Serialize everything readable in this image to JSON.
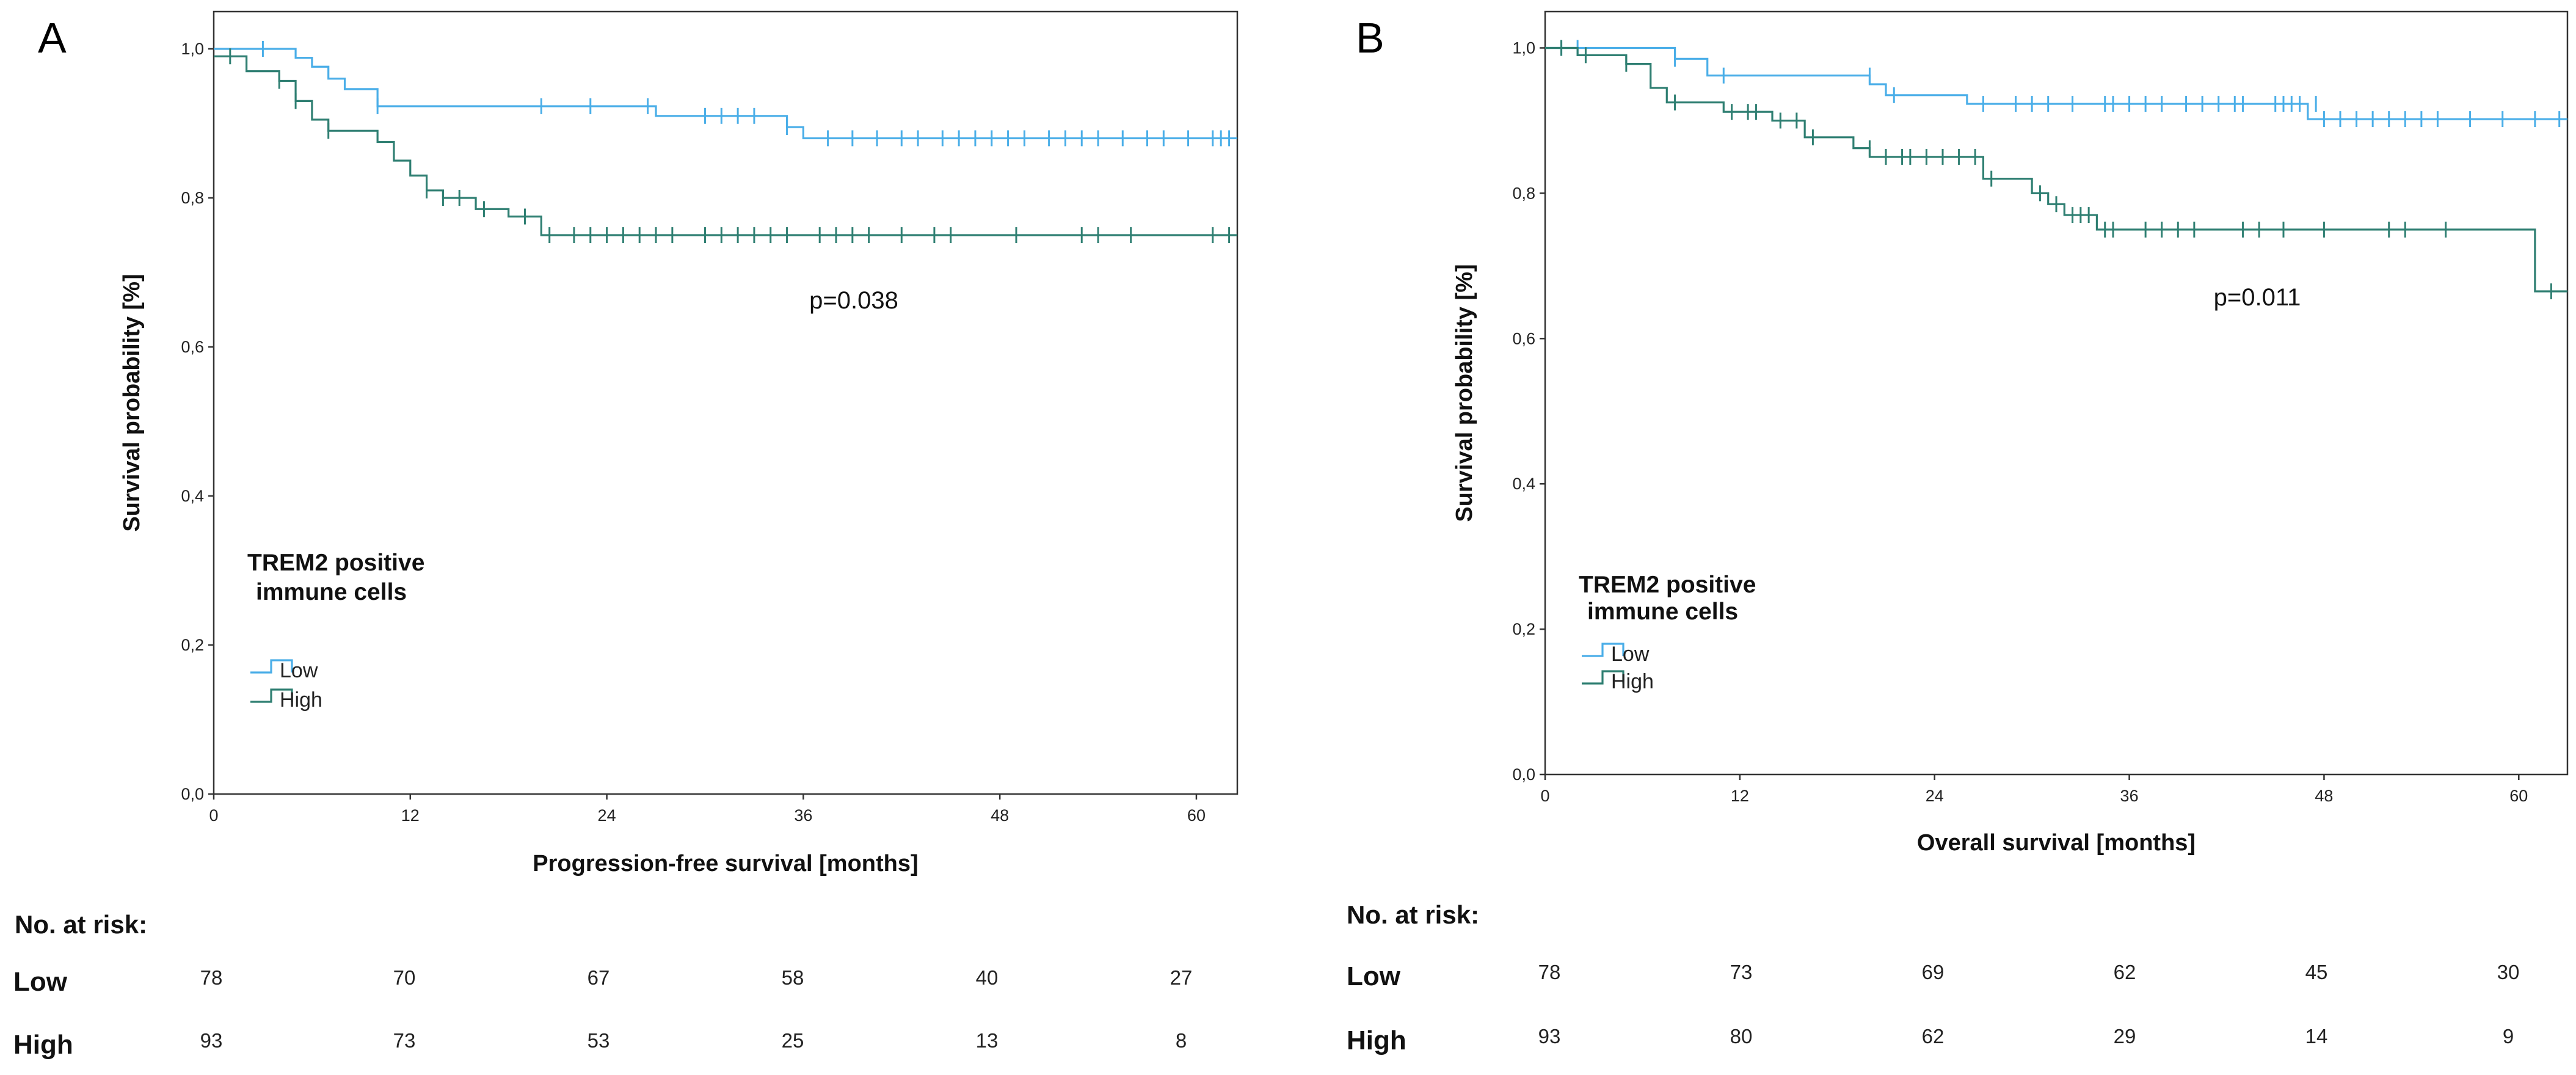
{
  "chart_data": [
    {
      "type": "line",
      "panel": "A",
      "xlabel": "Progression-free survival [months]",
      "ylabel": "Survival probability [%]",
      "xlim": [
        0,
        62.5
      ],
      "ylim": [
        0,
        1.05
      ],
      "xticks": [
        0,
        12,
        24,
        36,
        48,
        60
      ],
      "xtick_labels": [
        "0",
        "12",
        "24",
        "36",
        "48",
        "60"
      ],
      "yticks": [
        0,
        0.2,
        0.4,
        0.6,
        0.8,
        1.0
      ],
      "ytick_labels": [
        "0,0",
        "0,2",
        "0,4",
        "0,6",
        "0,8",
        "1,0"
      ],
      "grid": false,
      "legend": {
        "title_lines": [
          "TREM2 positive",
          "immune cells"
        ],
        "entries": [
          "Low",
          "High"
        ],
        "placement": "lower-left"
      },
      "annotation": "p=0.038",
      "series": [
        {
          "name": "Low",
          "color": "#4aaee8",
          "steps": [
            [
              0,
              1.0
            ],
            [
              5,
              0.988
            ],
            [
              6,
              0.976
            ],
            [
              7,
              0.96
            ],
            [
              8,
              0.946
            ],
            [
              10,
              0.923
            ],
            [
              27,
              0.91
            ],
            [
              35,
              0.895
            ],
            [
              36,
              0.88
            ]
          ],
          "censored": [
            [
              3,
              1.0
            ],
            [
              10,
              0.923
            ],
            [
              20,
              0.923
            ],
            [
              23,
              0.923
            ],
            [
              26.5,
              0.923
            ],
            [
              30,
              0.91
            ],
            [
              31,
              0.91
            ],
            [
              32,
              0.91
            ],
            [
              33,
              0.91
            ],
            [
              35,
              0.895
            ],
            [
              37.5,
              0.88
            ],
            [
              39,
              0.88
            ],
            [
              40.5,
              0.88
            ],
            [
              42,
              0.88
            ],
            [
              43,
              0.88
            ],
            [
              44.5,
              0.88
            ],
            [
              45.5,
              0.88
            ],
            [
              46.5,
              0.88
            ],
            [
              47.5,
              0.88
            ],
            [
              48.5,
              0.88
            ],
            [
              49.5,
              0.88
            ],
            [
              51,
              0.88
            ],
            [
              52,
              0.88
            ],
            [
              53,
              0.88
            ],
            [
              54,
              0.88
            ],
            [
              55.5,
              0.88
            ],
            [
              57,
              0.88
            ],
            [
              58,
              0.88
            ],
            [
              59.5,
              0.88
            ],
            [
              61,
              0.88
            ],
            [
              61.5,
              0.88
            ],
            [
              62,
              0.88
            ]
          ]
        },
        {
          "name": "High",
          "color": "#2f7f72",
          "steps": [
            [
              0,
              0.99
            ],
            [
              2,
              0.97
            ],
            [
              4,
              0.957
            ],
            [
              5,
              0.93
            ],
            [
              6,
              0.905
            ],
            [
              7,
              0.89
            ],
            [
              10,
              0.875
            ],
            [
              11,
              0.85
            ],
            [
              12,
              0.83
            ],
            [
              13,
              0.81
            ],
            [
              14,
              0.8
            ],
            [
              16,
              0.785
            ],
            [
              18,
              0.775
            ],
            [
              20,
              0.75
            ]
          ],
          "censored": [
            [
              1,
              0.99
            ],
            [
              4,
              0.957
            ],
            [
              5,
              0.93
            ],
            [
              7,
              0.89
            ],
            [
              13,
              0.81
            ],
            [
              14,
              0.8
            ],
            [
              15,
              0.8
            ],
            [
              16.5,
              0.785
            ],
            [
              19,
              0.775
            ],
            [
              20.5,
              0.75
            ],
            [
              22,
              0.75
            ],
            [
              23,
              0.75
            ],
            [
              24,
              0.75
            ],
            [
              25,
              0.75
            ],
            [
              26,
              0.75
            ],
            [
              27,
              0.75
            ],
            [
              28,
              0.75
            ],
            [
              30,
              0.75
            ],
            [
              31,
              0.75
            ],
            [
              32,
              0.75
            ],
            [
              33,
              0.75
            ],
            [
              34,
              0.75
            ],
            [
              35,
              0.75
            ],
            [
              37,
              0.75
            ],
            [
              38,
              0.75
            ],
            [
              39,
              0.75
            ],
            [
              40,
              0.75
            ],
            [
              42,
              0.75
            ],
            [
              44,
              0.75
            ],
            [
              45,
              0.75
            ],
            [
              49,
              0.75
            ],
            [
              53,
              0.75
            ],
            [
              54,
              0.75
            ],
            [
              56,
              0.75
            ],
            [
              61,
              0.75
            ],
            [
              62,
              0.75
            ]
          ]
        }
      ],
      "risk_table": {
        "heading": "No. at risk:",
        "groups": [
          {
            "name": "Low",
            "values": [
              "78",
              "70",
              "67",
              "58",
              "40",
              "27"
            ]
          },
          {
            "name": "High",
            "values": [
              "93",
              "73",
              "53",
              "25",
              "13",
              "8"
            ]
          }
        ]
      }
    },
    {
      "type": "line",
      "panel": "B",
      "xlabel": "Overall survival [months]",
      "ylabel": "Survival probability [%]",
      "xlim": [
        0,
        63
      ],
      "ylim": [
        0,
        1.05
      ],
      "xticks": [
        0,
        12,
        24,
        36,
        48,
        60
      ],
      "xtick_labels": [
        "0",
        "12",
        "24",
        "36",
        "48",
        "60"
      ],
      "yticks": [
        0,
        0.2,
        0.4,
        0.6,
        0.8,
        1.0
      ],
      "ytick_labels": [
        "0,0",
        "0,2",
        "0,4",
        "0,6",
        "0,8",
        "1,0"
      ],
      "grid": false,
      "legend": {
        "title_lines": [
          "TREM2 positive",
          "immune cells"
        ],
        "entries": [
          "Low",
          "High"
        ],
        "placement": "lower-left"
      },
      "annotation": "p=0.011",
      "series": [
        {
          "name": "Low",
          "color": "#4aaee8",
          "steps": [
            [
              0,
              1.0
            ],
            [
              8,
              0.985
            ],
            [
              10,
              0.962
            ],
            [
              20,
              0.95
            ],
            [
              21,
              0.935
            ],
            [
              26,
              0.923
            ],
            [
              47,
              0.902
            ]
          ],
          "censored": [
            [
              1,
              1.0
            ],
            [
              2,
              1.0
            ],
            [
              8,
              0.985
            ],
            [
              11,
              0.962
            ],
            [
              20,
              0.962
            ],
            [
              21.5,
              0.935
            ],
            [
              27,
              0.923
            ],
            [
              29,
              0.923
            ],
            [
              30,
              0.923
            ],
            [
              31,
              0.923
            ],
            [
              32.5,
              0.923
            ],
            [
              34.5,
              0.923
            ],
            [
              35,
              0.923
            ],
            [
              36,
              0.923
            ],
            [
              37,
              0.923
            ],
            [
              38,
              0.923
            ],
            [
              39.5,
              0.923
            ],
            [
              40.5,
              0.923
            ],
            [
              41.5,
              0.923
            ],
            [
              42.5,
              0.923
            ],
            [
              43,
              0.923
            ],
            [
              45,
              0.923
            ],
            [
              45.5,
              0.923
            ],
            [
              46,
              0.923
            ],
            [
              46.5,
              0.923
            ],
            [
              47.5,
              0.923
            ],
            [
              48,
              0.902
            ],
            [
              49,
              0.902
            ],
            [
              50,
              0.902
            ],
            [
              51,
              0.902
            ],
            [
              52,
              0.902
            ],
            [
              53,
              0.902
            ],
            [
              54,
              0.902
            ],
            [
              55,
              0.902
            ],
            [
              57,
              0.902
            ],
            [
              59,
              0.902
            ],
            [
              61,
              0.902
            ],
            [
              62.5,
              0.902
            ]
          ]
        },
        {
          "name": "High",
          "color": "#2f7f72",
          "steps": [
            [
              0,
              1.0
            ],
            [
              2,
              0.99
            ],
            [
              5,
              0.978
            ],
            [
              6.5,
              0.945
            ],
            [
              7.5,
              0.925
            ],
            [
              11,
              0.912
            ],
            [
              14,
              0.9
            ],
            [
              16,
              0.877
            ],
            [
              19,
              0.862
            ],
            [
              20,
              0.85
            ],
            [
              27,
              0.82
            ],
            [
              30,
              0.8
            ],
            [
              31,
              0.785
            ],
            [
              32,
              0.77
            ],
            [
              34,
              0.75
            ],
            [
              61,
              0.665
            ]
          ],
          "censored": [
            [
              1,
              1.0
            ],
            [
              2.5,
              0.99
            ],
            [
              5,
              0.978
            ],
            [
              8,
              0.925
            ],
            [
              11.5,
              0.912
            ],
            [
              12.5,
              0.912
            ],
            [
              13,
              0.912
            ],
            [
              14.5,
              0.9
            ],
            [
              15.5,
              0.9
            ],
            [
              16.5,
              0.877
            ],
            [
              20,
              0.862
            ],
            [
              21,
              0.85
            ],
            [
              22,
              0.85
            ],
            [
              22.5,
              0.85
            ],
            [
              23.5,
              0.85
            ],
            [
              24.5,
              0.85
            ],
            [
              25.5,
              0.85
            ],
            [
              26.5,
              0.85
            ],
            [
              27.5,
              0.82
            ],
            [
              30.5,
              0.8
            ],
            [
              31.5,
              0.785
            ],
            [
              32.5,
              0.77
            ],
            [
              33,
              0.77
            ],
            [
              33.5,
              0.77
            ],
            [
              34.5,
              0.75
            ],
            [
              35,
              0.75
            ],
            [
              37,
              0.75
            ],
            [
              38,
              0.75
            ],
            [
              39,
              0.75
            ],
            [
              40,
              0.75
            ],
            [
              43,
              0.75
            ],
            [
              44,
              0.75
            ],
            [
              45.5,
              0.75
            ],
            [
              48,
              0.75
            ],
            [
              52,
              0.75
            ],
            [
              53,
              0.75
            ],
            [
              55.5,
              0.75
            ],
            [
              62,
              0.665
            ]
          ]
        }
      ],
      "risk_table": {
        "heading": "No. at risk:",
        "groups": [
          {
            "name": "Low",
            "values": [
              "78",
              "73",
              "69",
              "62",
              "45",
              "30"
            ]
          },
          {
            "name": "High",
            "values": [
              "93",
              "80",
              "62",
              "29",
              "14",
              "9"
            ]
          }
        ]
      }
    }
  ]
}
